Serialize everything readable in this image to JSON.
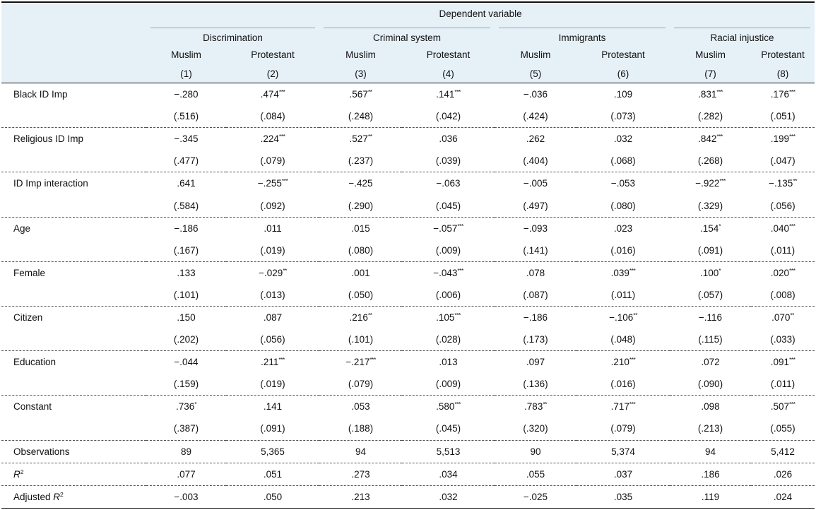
{
  "header": {
    "dependent_variable": "Dependent variable",
    "groups": [
      "Discrimination",
      "Criminal system",
      "Immigrants",
      "Racial injustice"
    ],
    "subgroups": [
      "Muslim",
      "Protestant",
      "Muslim",
      "Protestant",
      "Muslim",
      "Protestant",
      "Muslim",
      "Protestant"
    ],
    "model_numbers": [
      "(1)",
      "(2)",
      "(3)",
      "(4)",
      "(5)",
      "(6)",
      "(7)",
      "(8)"
    ]
  },
  "rows": [
    {
      "label": "Black ID Imp",
      "coef": [
        {
          "v": "−.280",
          "s": ""
        },
        {
          "v": ".474",
          "s": "***"
        },
        {
          "v": ".567",
          "s": "**"
        },
        {
          "v": ".141",
          "s": "***"
        },
        {
          "v": "−.036",
          "s": ""
        },
        {
          "v": ".109",
          "s": ""
        },
        {
          "v": ".831",
          "s": "***"
        },
        {
          "v": ".176",
          "s": "***"
        }
      ],
      "se": [
        "(.516)",
        "(.084)",
        "(.248)",
        "(.042)",
        "(.424)",
        "(.073)",
        "(.282)",
        "(.051)"
      ]
    },
    {
      "label": "Religious ID Imp",
      "coef": [
        {
          "v": "−.345",
          "s": ""
        },
        {
          "v": ".224",
          "s": "***"
        },
        {
          "v": ".527",
          "s": "**"
        },
        {
          "v": ".036",
          "s": ""
        },
        {
          "v": ".262",
          "s": ""
        },
        {
          "v": ".032",
          "s": ""
        },
        {
          "v": ".842",
          "s": "***"
        },
        {
          "v": ".199",
          "s": "***"
        }
      ],
      "se": [
        "(.477)",
        "(.079)",
        "(.237)",
        "(.039)",
        "(.404)",
        "(.068)",
        "(.268)",
        "(.047)"
      ]
    },
    {
      "label": "ID Imp interaction",
      "coef": [
        {
          "v": ".641",
          "s": ""
        },
        {
          "v": "−.255",
          "s": "***"
        },
        {
          "v": "−.425",
          "s": ""
        },
        {
          "v": "−.063",
          "s": ""
        },
        {
          "v": "−.005",
          "s": ""
        },
        {
          "v": "−.053",
          "s": ""
        },
        {
          "v": "−.922",
          "s": "***"
        },
        {
          "v": "−.135",
          "s": "**"
        }
      ],
      "se": [
        "(.584)",
        "(.092)",
        "(.290)",
        "(.045)",
        "(.497)",
        "(.080)",
        "(.329)",
        "(.056)"
      ]
    },
    {
      "label": "Age",
      "coef": [
        {
          "v": "−.186",
          "s": ""
        },
        {
          "v": ".011",
          "s": ""
        },
        {
          "v": ".015",
          "s": ""
        },
        {
          "v": "−.057",
          "s": "***"
        },
        {
          "v": "−.093",
          "s": ""
        },
        {
          "v": ".023",
          "s": ""
        },
        {
          "v": ".154",
          "s": "*"
        },
        {
          "v": ".040",
          "s": "***"
        }
      ],
      "se": [
        "(.167)",
        "(.019)",
        "(.080)",
        "(.009)",
        "(.141)",
        "(.016)",
        "(.091)",
        "(.011)"
      ]
    },
    {
      "label": "Female",
      "coef": [
        {
          "v": ".133",
          "s": ""
        },
        {
          "v": "−.029",
          "s": "**"
        },
        {
          "v": ".001",
          "s": ""
        },
        {
          "v": "−.043",
          "s": "***"
        },
        {
          "v": ".078",
          "s": ""
        },
        {
          "v": ".039",
          "s": "***"
        },
        {
          "v": ".100",
          "s": "*"
        },
        {
          "v": ".020",
          "s": "***"
        }
      ],
      "se": [
        "(.101)",
        "(.013)",
        "(.050)",
        "(.006)",
        "(.087)",
        "(.011)",
        "(.057)",
        "(.008)"
      ]
    },
    {
      "label": "Citizen",
      "coef": [
        {
          "v": ".150",
          "s": ""
        },
        {
          "v": ".087",
          "s": ""
        },
        {
          "v": ".216",
          "s": "**"
        },
        {
          "v": ".105",
          "s": "***"
        },
        {
          "v": "−.186",
          "s": ""
        },
        {
          "v": "−.106",
          "s": "**"
        },
        {
          "v": "−.116",
          "s": ""
        },
        {
          "v": ".070",
          "s": "**"
        }
      ],
      "se": [
        "(.202)",
        "(.056)",
        "(.101)",
        "(.028)",
        "(.173)",
        "(.048)",
        "(.115)",
        "(.033)"
      ]
    },
    {
      "label": "Education",
      "coef": [
        {
          "v": "−.044",
          "s": ""
        },
        {
          "v": ".211",
          "s": "***"
        },
        {
          "v": "−.217",
          "s": "***"
        },
        {
          "v": ".013",
          "s": ""
        },
        {
          "v": ".097",
          "s": ""
        },
        {
          "v": ".210",
          "s": "***"
        },
        {
          "v": ".072",
          "s": ""
        },
        {
          "v": ".091",
          "s": "***"
        }
      ],
      "se": [
        "(.159)",
        "(.019)",
        "(.079)",
        "(.009)",
        "(.136)",
        "(.016)",
        "(.090)",
        "(.011)"
      ]
    },
    {
      "label": "Constant",
      "coef": [
        {
          "v": ".736",
          "s": "*"
        },
        {
          "v": ".141",
          "s": ""
        },
        {
          "v": ".053",
          "s": ""
        },
        {
          "v": ".580",
          "s": "***"
        },
        {
          "v": ".783",
          "s": "**"
        },
        {
          "v": ".717",
          "s": "***"
        },
        {
          "v": ".098",
          "s": ""
        },
        {
          "v": ".507",
          "s": "***"
        }
      ],
      "se": [
        "(.387)",
        "(.091)",
        "(.188)",
        "(.045)",
        "(.320)",
        "(.079)",
        "(.213)",
        "(.055)"
      ]
    }
  ],
  "stats": [
    {
      "label": "Observations",
      "label_rest": "",
      "values": [
        "89",
        "5,365",
        "94",
        "5,513",
        "90",
        "5,374",
        "94",
        "5,412"
      ]
    },
    {
      "label": "",
      "label_it": "R",
      "label_sup": "2",
      "values": [
        ".077",
        ".051",
        ".273",
        ".034",
        ".055",
        ".037",
        ".186",
        ".026"
      ]
    },
    {
      "label": "Adjusted ",
      "label_it": "R",
      "label_sup": "2",
      "values": [
        "−.003",
        ".050",
        ".213",
        ".032",
        "−.025",
        ".035",
        ".119",
        ".024"
      ]
    }
  ]
}
